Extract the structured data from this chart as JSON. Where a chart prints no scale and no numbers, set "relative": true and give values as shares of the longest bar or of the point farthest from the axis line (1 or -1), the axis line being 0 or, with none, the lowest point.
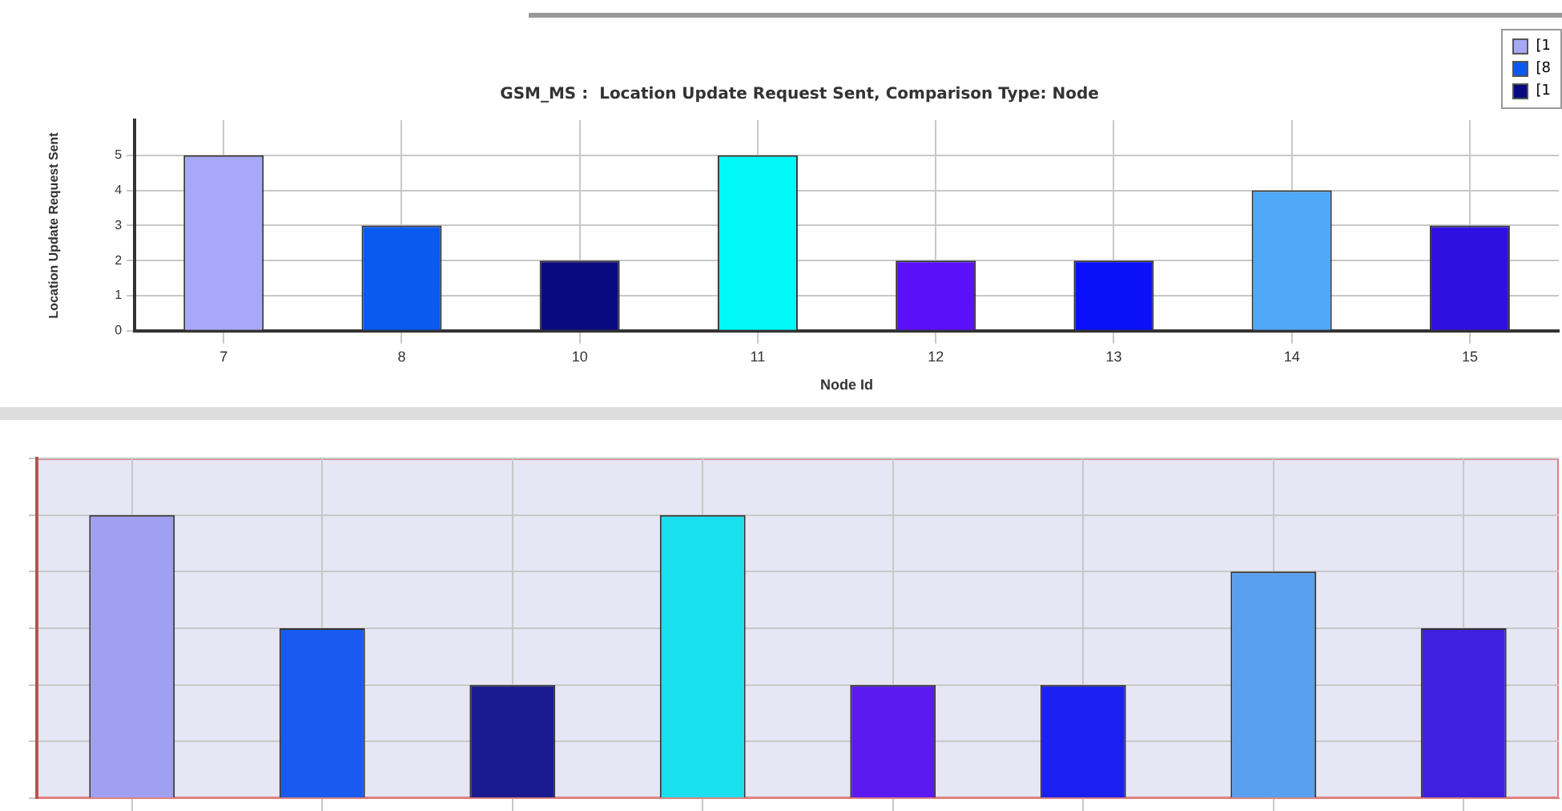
{
  "chart_data": [
    {
      "type": "bar",
      "title": "GSM_MS :  Location Update Request Sent, Comparison Type: Node",
      "xlabel": "Node Id",
      "ylabel": "Location Update Request Sent",
      "categories": [
        "7",
        "8",
        "10",
        "11",
        "12",
        "13",
        "14",
        "15"
      ],
      "values": [
        5,
        3,
        2,
        5,
        2,
        2,
        4,
        3
      ],
      "colors": [
        "#a8a8f8",
        "#0a5af0",
        "#0a0a80",
        "#00f8f8",
        "#5a10f8",
        "#0a10f8",
        "#50a8f8",
        "#3010e0"
      ],
      "ylim": [
        0,
        6
      ],
      "yticks": [
        0,
        1,
        2,
        3,
        4,
        5
      ],
      "grid": true,
      "annotations": [
        "[1",
        "[8",
        "[1"
      ]
    },
    {
      "type": "bar",
      "categories": [
        null,
        null,
        null,
        null,
        null,
        null,
        null,
        null
      ],
      "values": [
        1,
        0.6,
        0.4,
        1,
        0.4,
        0.4,
        0.8,
        0.6
      ],
      "relative": true,
      "colors": [
        "#a0a0f0",
        "#1a5af0",
        "#1a1a90",
        "#1ae0f0",
        "#5a1af0",
        "#1a20f0",
        "#5aa0f0",
        "#4020e0"
      ],
      "grid": true,
      "tick_labels": false
    }
  ]
}
